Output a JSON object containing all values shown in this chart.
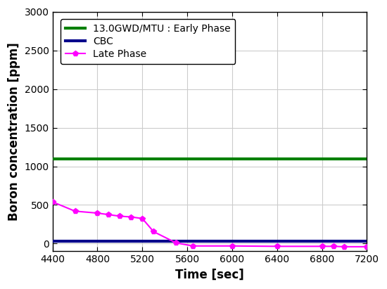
{
  "early_phase_value": 1100,
  "early_phase_color": "#008000",
  "early_phase_label": "13.0GWD/MTU : Early Phase",
  "cbc_value": 35,
  "cbc_color": "#00008B",
  "cbc_label": "CBC",
  "late_phase_x": [
    4400,
    4600,
    4800,
    4900,
    5000,
    5100,
    5200,
    5300,
    5500,
    5650,
    6000,
    6400,
    6800,
    6900,
    7000,
    7200
  ],
  "late_phase_y": [
    540,
    420,
    395,
    375,
    355,
    345,
    325,
    155,
    10,
    -30,
    -30,
    -35,
    -35,
    -35,
    -40,
    -40
  ],
  "late_phase_color": "#FF00FF",
  "late_phase_label": "Late Phase",
  "xlim": [
    4400,
    7200
  ],
  "ylim": [
    -100,
    3000
  ],
  "xlabel": "Time [sec]",
  "ylabel": "Boron concentration [ppm]",
  "xticks": [
    4400,
    4800,
    5200,
    5600,
    6000,
    6400,
    6800,
    7200
  ],
  "yticks": [
    0,
    500,
    1000,
    1500,
    2000,
    2500,
    3000
  ],
  "grid_color": "#cccccc",
  "background_color": "#ffffff",
  "axis_fontsize": 12,
  "tick_fontsize": 10,
  "legend_fontsize": 10,
  "linewidth": 1.5,
  "cbc_linewidth": 3.0,
  "early_linewidth": 3.0,
  "marker_size": 6
}
